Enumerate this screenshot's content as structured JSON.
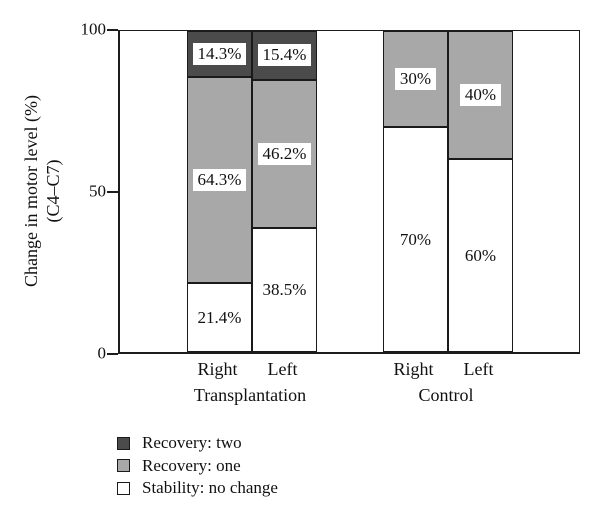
{
  "chart_data": {
    "type": "bar",
    "stacked": true,
    "title": "",
    "ylabel_line1": "Change in motor level (%)",
    "ylabel_line2": "(C4–C7)",
    "ylim": [
      0,
      100
    ],
    "yticks": [
      {
        "label": "0",
        "value": 0
      },
      {
        "label": "50",
        "value": 50
      },
      {
        "label": "100",
        "value": 100
      }
    ],
    "grid": false,
    "legend_position": "below-left",
    "legend": [
      {
        "label": "Recovery: two",
        "color": "#4b4b4b"
      },
      {
        "label": "Recovery: one",
        "color": "#a8a8a8"
      },
      {
        "label": "Stability: no change",
        "color": "#ffffff"
      }
    ],
    "groups": [
      {
        "label": "Transplantation",
        "bars": [
          {
            "label": "Right",
            "segments": [
              {
                "series": "Stability: no change",
                "value": 21.4,
                "display": "21.4%"
              },
              {
                "series": "Recovery: one",
                "value": 64.3,
                "display": "64.3%"
              },
              {
                "series": "Recovery: two",
                "value": 14.3,
                "display": "14.3%"
              }
            ]
          },
          {
            "label": "Left",
            "segments": [
              {
                "series": "Stability: no change",
                "value": 38.5,
                "display": "38.5%"
              },
              {
                "series": "Recovery: one",
                "value": 46.2,
                "display": "46.2%"
              },
              {
                "series": "Recovery: two",
                "value": 15.4,
                "display": "15.4%"
              }
            ]
          }
        ]
      },
      {
        "label": "Control",
        "bars": [
          {
            "label": "Right",
            "segments": [
              {
                "series": "Stability: no change",
                "value": 70,
                "display": "70%"
              },
              {
                "series": "Recovery: one",
                "value": 30,
                "display": "30%"
              }
            ]
          },
          {
            "label": "Left",
            "segments": [
              {
                "series": "Stability: no change",
                "value": 60,
                "display": "60%"
              },
              {
                "series": "Recovery: one",
                "value": 40,
                "display": "40%"
              }
            ]
          }
        ]
      }
    ]
  },
  "colors": {
    "axis": "#1a1a1a",
    "background": "#ffffff",
    "text": "#111111"
  }
}
